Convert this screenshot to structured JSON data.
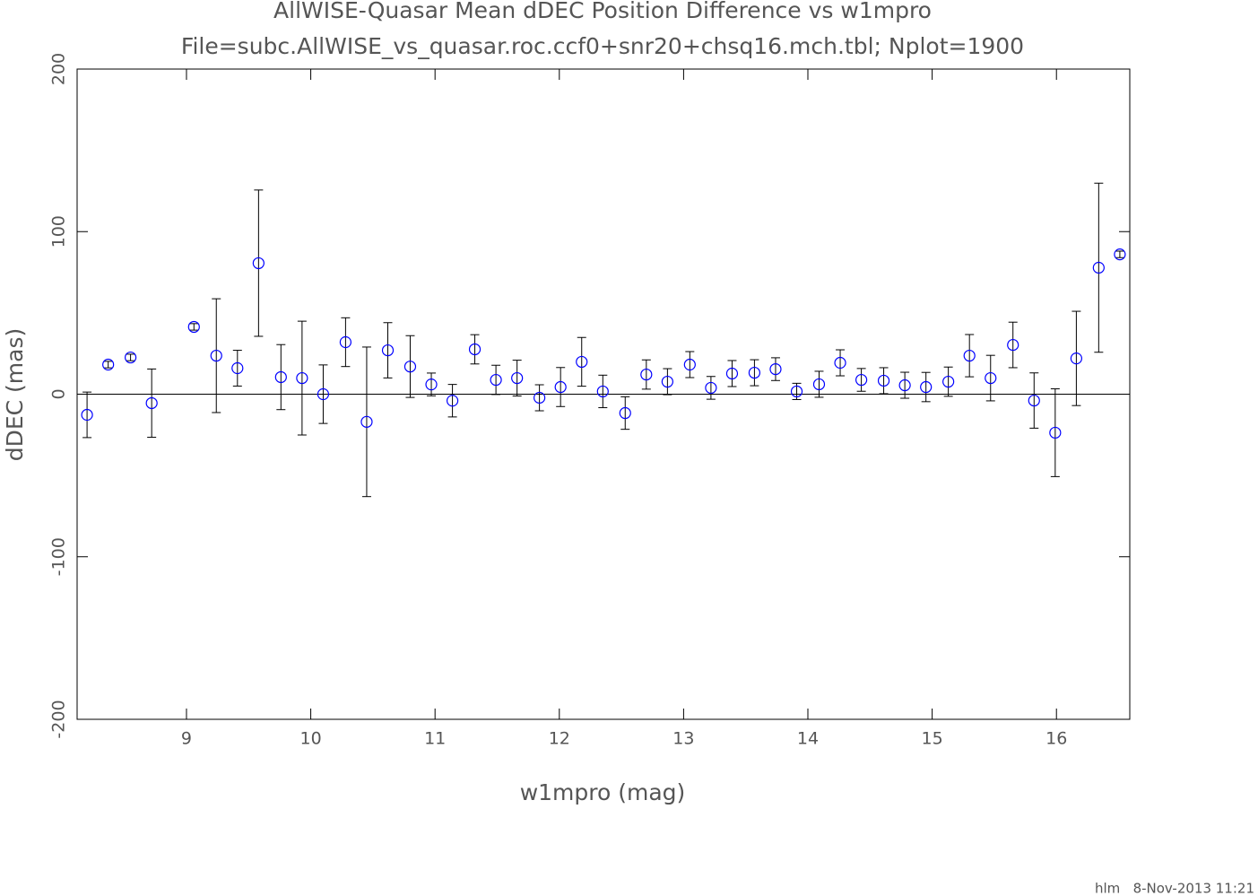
{
  "chart_data": {
    "type": "scatter",
    "title": "AllWISE-Quasar Mean dDEC Position Difference vs w1mpro",
    "subtitle": "File=subc.AllWISE_vs_quasar.roc.ccf0+snr20+chsq16.mch.tbl; Nplot=1900",
    "xlabel": "w1mpro (mag)",
    "ylabel": "dDEC (mas)",
    "footer": "hlm   8-Nov-2013 11:21",
    "color": "#0000ff",
    "error_color": "#000000",
    "xlim": [
      8.12,
      16.59
    ],
    "ylim": [
      -200,
      200
    ],
    "xticks": [
      9,
      10,
      11,
      12,
      13,
      14,
      15,
      16
    ],
    "yticks": [
      -200,
      -100,
      0,
      100,
      200
    ],
    "zero_line": true,
    "x": [
      8.2,
      8.37,
      8.55,
      8.72,
      9.06,
      9.24,
      9.41,
      9.58,
      9.76,
      9.93,
      10.1,
      10.28,
      10.45,
      10.62,
      10.8,
      10.97,
      11.14,
      11.32,
      11.49,
      11.66,
      11.84,
      12.01,
      12.18,
      12.35,
      12.53,
      12.7,
      12.87,
      13.05,
      13.22,
      13.39,
      13.57,
      13.74,
      13.91,
      14.09,
      14.26,
      14.43,
      14.61,
      14.78,
      14.95,
      15.13,
      15.3,
      15.47,
      15.65,
      15.82,
      15.99,
      16.16,
      16.34,
      16.51
    ],
    "values": [
      -12.7,
      18.2,
      22.6,
      -5.5,
      41.4,
      23.7,
      16,
      80.6,
      10.5,
      9.9,
      0,
      32,
      -17,
      27,
      17,
      6,
      -4,
      27.6,
      8.8,
      9.9,
      -2.2,
      4.4,
      19.9,
      1.7,
      -11.6,
      12.1,
      7.7,
      18.2,
      3.9,
      12.7,
      13.2,
      15.4,
      1.7,
      6.1,
      19.3,
      8.8,
      8.3,
      5.5,
      4.4,
      7.7,
      23.7,
      9.9,
      30.3,
      -3.9,
      -23.7,
      22,
      77.8,
      86
    ],
    "errors": [
      14,
      2,
      2,
      21,
      2,
      35,
      11,
      45,
      20,
      35,
      18,
      15,
      46,
      17,
      19,
      7,
      10,
      9,
      9,
      11,
      8,
      12,
      15,
      10,
      10,
      9,
      8,
      8,
      7,
      8,
      8,
      7,
      5,
      8,
      8,
      7,
      8,
      8,
      9,
      9,
      13,
      14,
      14,
      17,
      27,
      29,
      52,
      2
    ]
  }
}
